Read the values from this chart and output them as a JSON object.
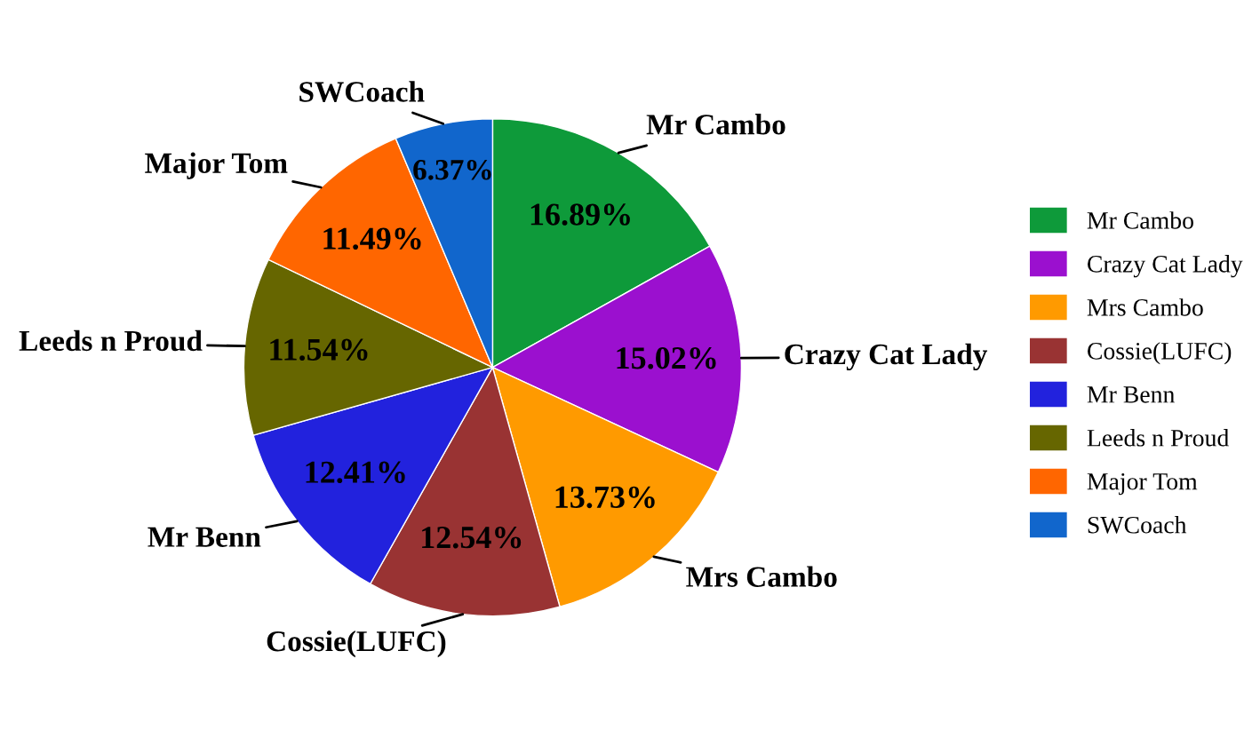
{
  "chart_data": {
    "type": "pie",
    "categories": [
      "Mr Cambo",
      "Crazy Cat Lady",
      "Mrs Cambo",
      "Cossie(LUFC)",
      "Mr Benn",
      "Leeds n Proud",
      "Major Tom",
      "SWCoach"
    ],
    "values": [
      16.89,
      15.02,
      13.73,
      12.54,
      12.41,
      11.54,
      11.49,
      6.37
    ],
    "colors": [
      "#0e9a3a",
      "#9b10cf",
      "#ff9a00",
      "#993333",
      "#2222dd",
      "#666600",
      "#ff6600",
      "#1166cc"
    ],
    "value_labels": [
      "16.89%",
      "15.02%",
      "13.73%",
      "12.54%",
      "12.41%",
      "11.54%",
      "11.49%",
      "6.37%"
    ],
    "legend": "right"
  }
}
